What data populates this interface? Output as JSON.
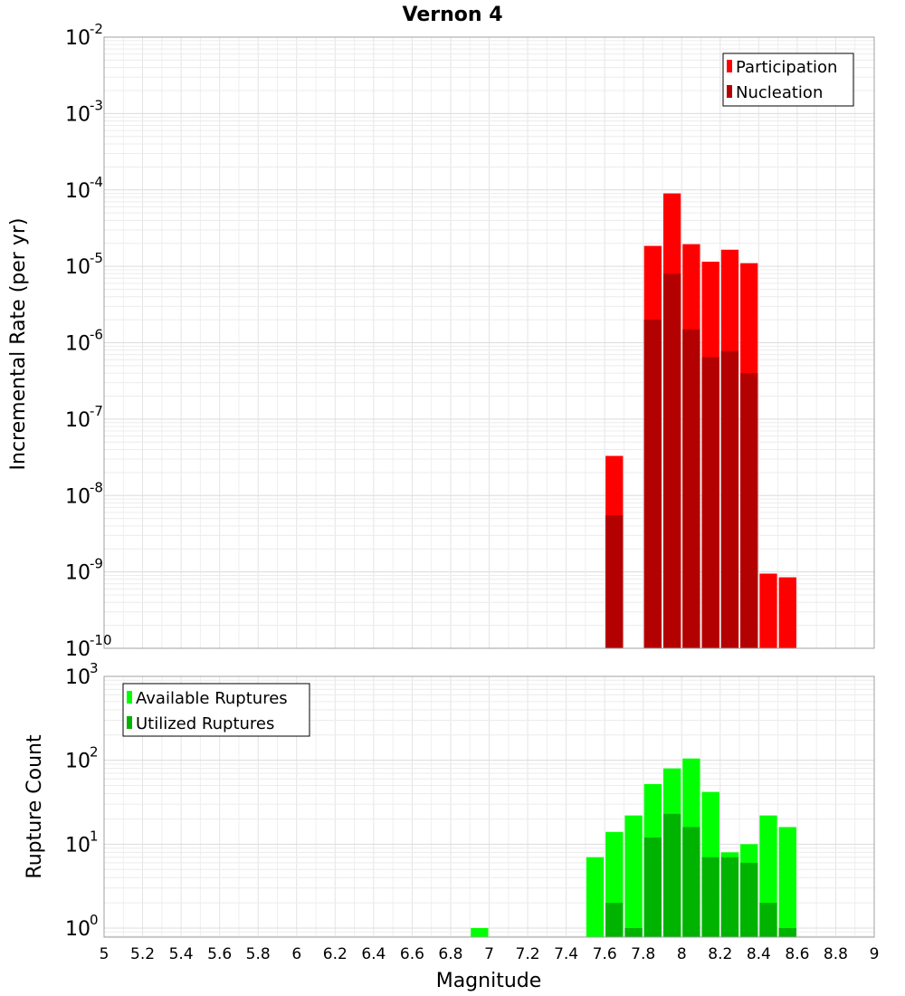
{
  "chart_data": [
    {
      "type": "bar",
      "title": "Vernon 4",
      "ylabel": "Incremental Rate (per yr)",
      "xlabel": "",
      "yscale": "log",
      "ylim": [
        1e-10,
        0.01
      ],
      "xlim": [
        5,
        9
      ],
      "ytick_labels": [
        {
          "base": "10",
          "exp": "-2"
        },
        {
          "base": "10",
          "exp": "-3"
        },
        {
          "base": "10",
          "exp": "-4"
        },
        {
          "base": "10",
          "exp": "-5"
        },
        {
          "base": "10",
          "exp": "-6"
        },
        {
          "base": "10",
          "exp": "-7"
        },
        {
          "base": "10",
          "exp": "-8"
        },
        {
          "base": "10",
          "exp": "-9"
        },
        {
          "base": "10",
          "exp": "-10"
        }
      ],
      "grid": true,
      "legend_position": "top-right",
      "legend": [
        "Participation",
        "Nucleation"
      ],
      "colors": {
        "Participation": "#ff0000",
        "Nucleation": "#b30000"
      },
      "x": [
        7.65,
        7.85,
        7.95,
        8.05,
        8.15,
        8.25,
        8.35,
        8.45,
        8.55
      ],
      "series": [
        {
          "name": "Participation",
          "values": [
            3.3e-08,
            1.85e-05,
            9e-05,
            1.95e-05,
            1.15e-05,
            1.65e-05,
            1.1e-05,
            9.5e-10,
            8.5e-10
          ]
        },
        {
          "name": "Nucleation",
          "values": [
            5.5e-09,
            2e-06,
            8e-06,
            1.5e-06,
            6.5e-07,
            7.8e-07,
            4e-07,
            null,
            null
          ]
        }
      ]
    },
    {
      "type": "bar",
      "title": "",
      "ylabel": "Rupture Count",
      "xlabel": "Magnitude",
      "yscale": "log",
      "ylim": [
        0.78,
        1000
      ],
      "xlim": [
        5,
        9
      ],
      "ytick_labels": [
        {
          "base": "10",
          "exp": "3"
        },
        {
          "base": "10",
          "exp": "2"
        },
        {
          "base": "10",
          "exp": "1"
        },
        {
          "base": "10",
          "exp": "0"
        }
      ],
      "xtick_labels": [
        "5",
        "5.2",
        "5.4",
        "5.6",
        "5.8",
        "6",
        "6.2",
        "6.4",
        "6.6",
        "6.8",
        "7",
        "7.2",
        "7.4",
        "7.6",
        "7.8",
        "8",
        "8.2",
        "8.4",
        "8.6",
        "8.8",
        "9"
      ],
      "grid": true,
      "legend_position": "top-left",
      "legend": [
        "Available Ruptures",
        "Utilized Ruptures"
      ],
      "colors": {
        "Available Ruptures": "#00ff00",
        "Utilized Ruptures": "#00b300"
      },
      "x": [
        6.95,
        7.55,
        7.65,
        7.75,
        7.85,
        7.95,
        8.05,
        8.15,
        8.25,
        8.35,
        8.45,
        8.55
      ],
      "series": [
        {
          "name": "Available Ruptures",
          "values": [
            1,
            7,
            14,
            22,
            52,
            80,
            105,
            42,
            8,
            10,
            22,
            16
          ]
        },
        {
          "name": "Utilized Ruptures",
          "values": [
            null,
            null,
            2,
            1,
            12,
            23,
            16,
            7,
            7,
            6,
            2,
            1
          ]
        }
      ]
    }
  ]
}
